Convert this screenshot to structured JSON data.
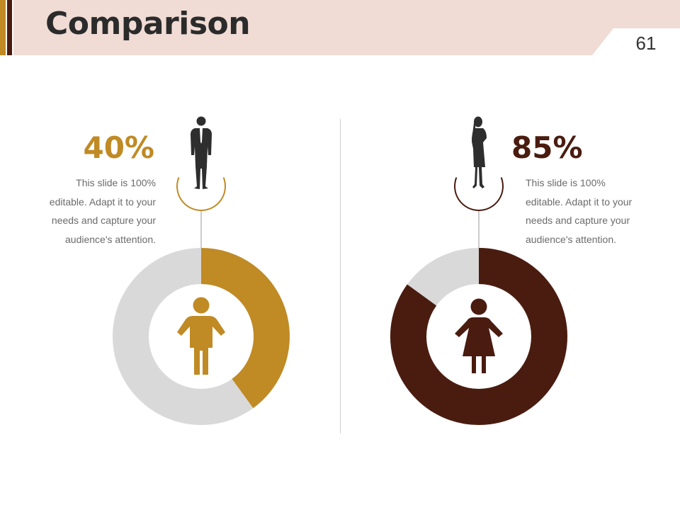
{
  "header": {
    "title": "Comparison",
    "page_number": "61"
  },
  "colors": {
    "header_band": "#f0dcd5",
    "accent_gold": "#c08a24",
    "accent_maroon": "#4a1c10",
    "donut_track": "#d9d9d9",
    "silhouette": "#2e2e2e"
  },
  "chart_data": [
    {
      "type": "pie",
      "subtype": "donut",
      "icon": "man-icon",
      "values": [
        40
      ],
      "max": 100,
      "value_label": "40%",
      "color": "#c08a24",
      "description": "This slide is 100% editable. Adapt it to your needs and capture your audience's attention.",
      "description_lines": [
        "This slide is 100%",
        "editable. Adapt it to your",
        "needs and capture your",
        "audience's attention."
      ]
    },
    {
      "type": "pie",
      "subtype": "donut",
      "icon": "woman-icon",
      "values": [
        85
      ],
      "max": 100,
      "value_label": "85%",
      "color": "#4a1c10",
      "description": "This slide is 100% editable. Adapt it to your needs and capture your audience's attention.",
      "description_lines": [
        "This slide is 100%",
        "editable. Adapt it to your",
        "needs and capture your",
        "audience's attention."
      ]
    }
  ]
}
